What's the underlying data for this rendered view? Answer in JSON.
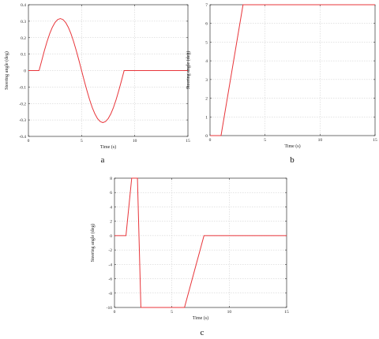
{
  "chart_data": [
    {
      "type": "line",
      "panel_label": "a",
      "xlabel": "Time (s)",
      "ylabel": "Steering angle (deg)",
      "xlim": [
        0,
        15
      ],
      "ylim": [
        -0.4,
        0.4
      ],
      "xticks": [
        0,
        5,
        10,
        15
      ],
      "yticks": [
        -0.4,
        -0.3,
        -0.2,
        -0.1,
        0,
        0.1,
        0.2,
        0.3,
        0.4
      ],
      "ytick_labels": [
        "-0.4",
        "-0.3",
        "-0.2",
        "-0.1",
        "0",
        "0.1",
        "0.2",
        "0.3",
        "0.4"
      ],
      "grid": true,
      "line_color": "#e8353a",
      "series": [
        {
          "x": [
            0,
            1.0,
            1.25,
            1.5,
            1.75,
            2.0,
            2.25,
            2.5,
            2.75,
            3.0,
            3.25,
            3.5,
            3.75,
            4.0,
            4.25,
            4.5,
            4.75,
            5.0,
            5.25,
            5.5,
            5.75,
            6.0,
            6.25,
            6.5,
            6.75,
            7.0,
            7.25,
            7.5,
            7.75,
            8.0,
            8.25,
            8.5,
            8.75,
            9.0,
            15
          ],
          "y": [
            0,
            0,
            0.06,
            0.121,
            0.176,
            0.224,
            0.263,
            0.292,
            0.31,
            0.316,
            0.31,
            0.292,
            0.263,
            0.224,
            0.176,
            0.121,
            0.062,
            0.0,
            -0.062,
            -0.121,
            -0.176,
            -0.224,
            -0.263,
            -0.292,
            -0.31,
            -0.316,
            -0.31,
            -0.292,
            -0.263,
            -0.224,
            -0.176,
            -0.121,
            -0.062,
            0,
            0
          ]
        }
      ]
    },
    {
      "type": "line",
      "panel_label": "b",
      "xlabel": "Time (s)",
      "ylabel": "Steering angle (deg)",
      "xlim": [
        0,
        15
      ],
      "ylim": [
        0,
        7
      ],
      "xticks": [
        0,
        5,
        10,
        15
      ],
      "yticks": [
        0,
        1,
        2,
        3,
        4,
        5,
        6,
        7
      ],
      "ytick_labels": [
        "0",
        "1",
        "2",
        "3",
        "4",
        "5",
        "6",
        "7"
      ],
      "grid": true,
      "line_color": "#e8353a",
      "series": [
        {
          "x": [
            0,
            1,
            3,
            15
          ],
          "y": [
            0,
            0,
            7,
            7
          ]
        }
      ]
    },
    {
      "type": "line",
      "panel_label": "c",
      "xlabel": "Time (s)",
      "ylabel": "Steering angle (deg)",
      "xlim": [
        0,
        15
      ],
      "ylim": [
        -10,
        8
      ],
      "xticks": [
        0,
        5,
        10,
        15
      ],
      "yticks": [
        -10,
        -8,
        -6,
        -4,
        -2,
        0,
        2,
        4,
        6,
        8
      ],
      "ytick_labels": [
        "-10",
        "-8",
        "-6",
        "-4",
        "-2",
        "0",
        "2",
        "4",
        "6",
        "8"
      ],
      "grid": true,
      "line_color": "#e8353a",
      "series": [
        {
          "x": [
            0,
            1,
            1.5,
            2.0,
            2.3,
            6.1,
            7.8,
            15
          ],
          "y": [
            0,
            0,
            8,
            8,
            -10,
            -10,
            0,
            0
          ]
        }
      ]
    }
  ]
}
